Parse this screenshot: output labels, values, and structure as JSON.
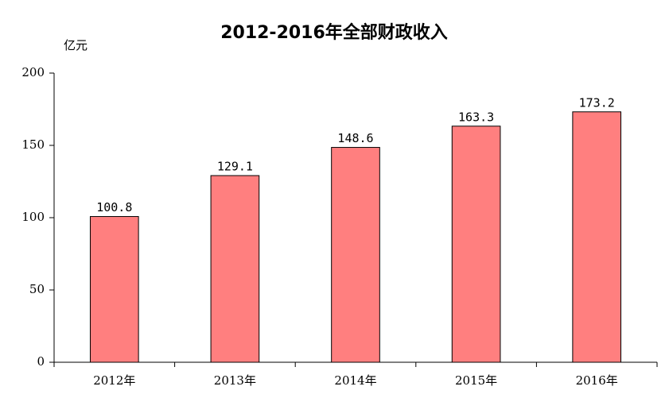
{
  "chart_data": {
    "type": "bar",
    "title": "2012-2016年全部财政收入",
    "y_label": "亿元",
    "categories": [
      "2012年",
      "2013年",
      "2014年",
      "2015年",
      "2016年"
    ],
    "values": [
      100.8,
      129.1,
      148.6,
      163.3,
      173.2
    ],
    "color": "#ff7f7f",
    "ylim": [
      0,
      200
    ],
    "yticks": [
      0,
      50,
      100,
      150,
      200
    ],
    "grid": false
  }
}
